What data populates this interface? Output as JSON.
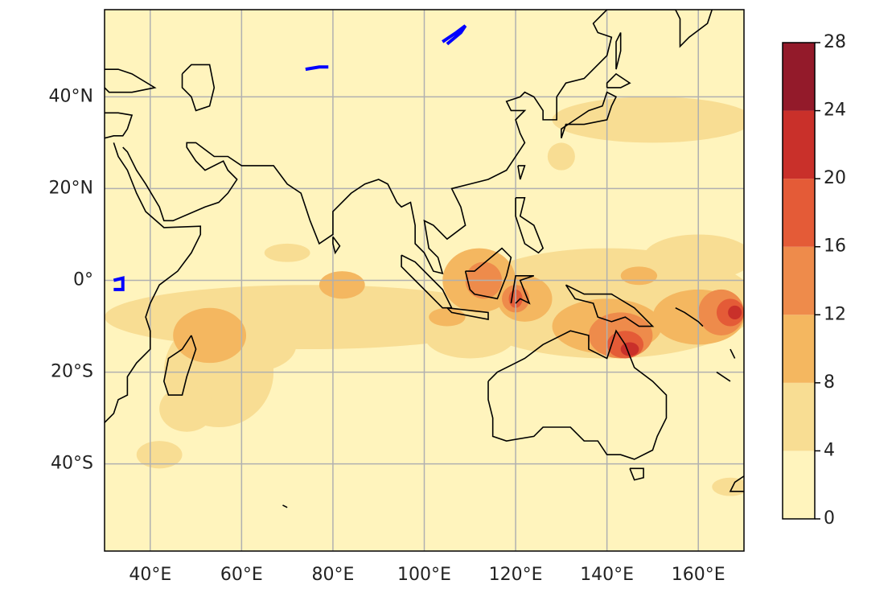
{
  "map": {
    "xlim": [
      30,
      170
    ],
    "ylim": [
      -59,
      59
    ],
    "grid": true,
    "xticks": [
      {
        "value": 40,
        "label": "40°E"
      },
      {
        "value": 60,
        "label": "60°E"
      },
      {
        "value": 80,
        "label": "80°E"
      },
      {
        "value": 100,
        "label": "100°E"
      },
      {
        "value": 120,
        "label": "120°E"
      },
      {
        "value": 140,
        "label": "140°E"
      },
      {
        "value": 160,
        "label": "160°E"
      }
    ],
    "yticks": [
      {
        "value": 40,
        "label": "40°N"
      },
      {
        "value": 20,
        "label": "20°N"
      },
      {
        "value": 0,
        "label": "0°"
      },
      {
        "value": -20,
        "label": "20°S"
      },
      {
        "value": -40,
        "label": "40°S"
      }
    ]
  },
  "colorbar": {
    "levels": [
      0,
      4,
      8,
      12,
      16,
      20,
      24,
      28
    ],
    "colors": [
      "#fff4bd",
      "#f8dd93",
      "#f4b760",
      "#ee8b4b",
      "#e45b37",
      "#c9302a",
      "#931a2a"
    ]
  }
}
